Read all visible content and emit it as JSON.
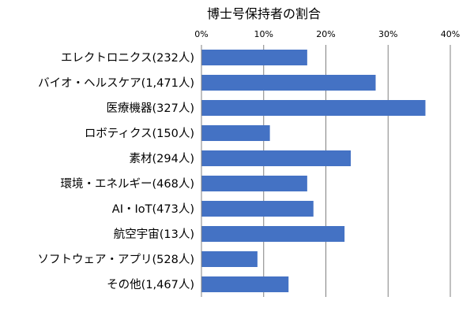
{
  "chart_data": {
    "type": "bar",
    "orientation": "horizontal",
    "title": "博士号保持者の割合",
    "xlabel": "",
    "ylabel": "",
    "axis_position": "top",
    "xlim": [
      0,
      40
    ],
    "xticks": [
      "0%",
      "10%",
      "20%",
      "30%",
      "40%"
    ],
    "grid": true,
    "legend": "none",
    "categories": [
      "エレクトロニクス(232人)",
      "バイオ・ヘルスケア(1,471人)",
      "医療機器(327人)",
      "ロボティクス(150人)",
      "素材(294人)",
      "環境・エネルギー(468人)",
      "AI・IoT(473人)",
      "航空宇宙(13人)",
      "ソフトウェア・アプリ(528人)",
      "その他(1,467人)"
    ],
    "values": [
      17,
      28,
      36,
      11,
      24,
      17,
      18,
      23,
      9,
      14
    ],
    "bar_color": "#4472C4"
  }
}
